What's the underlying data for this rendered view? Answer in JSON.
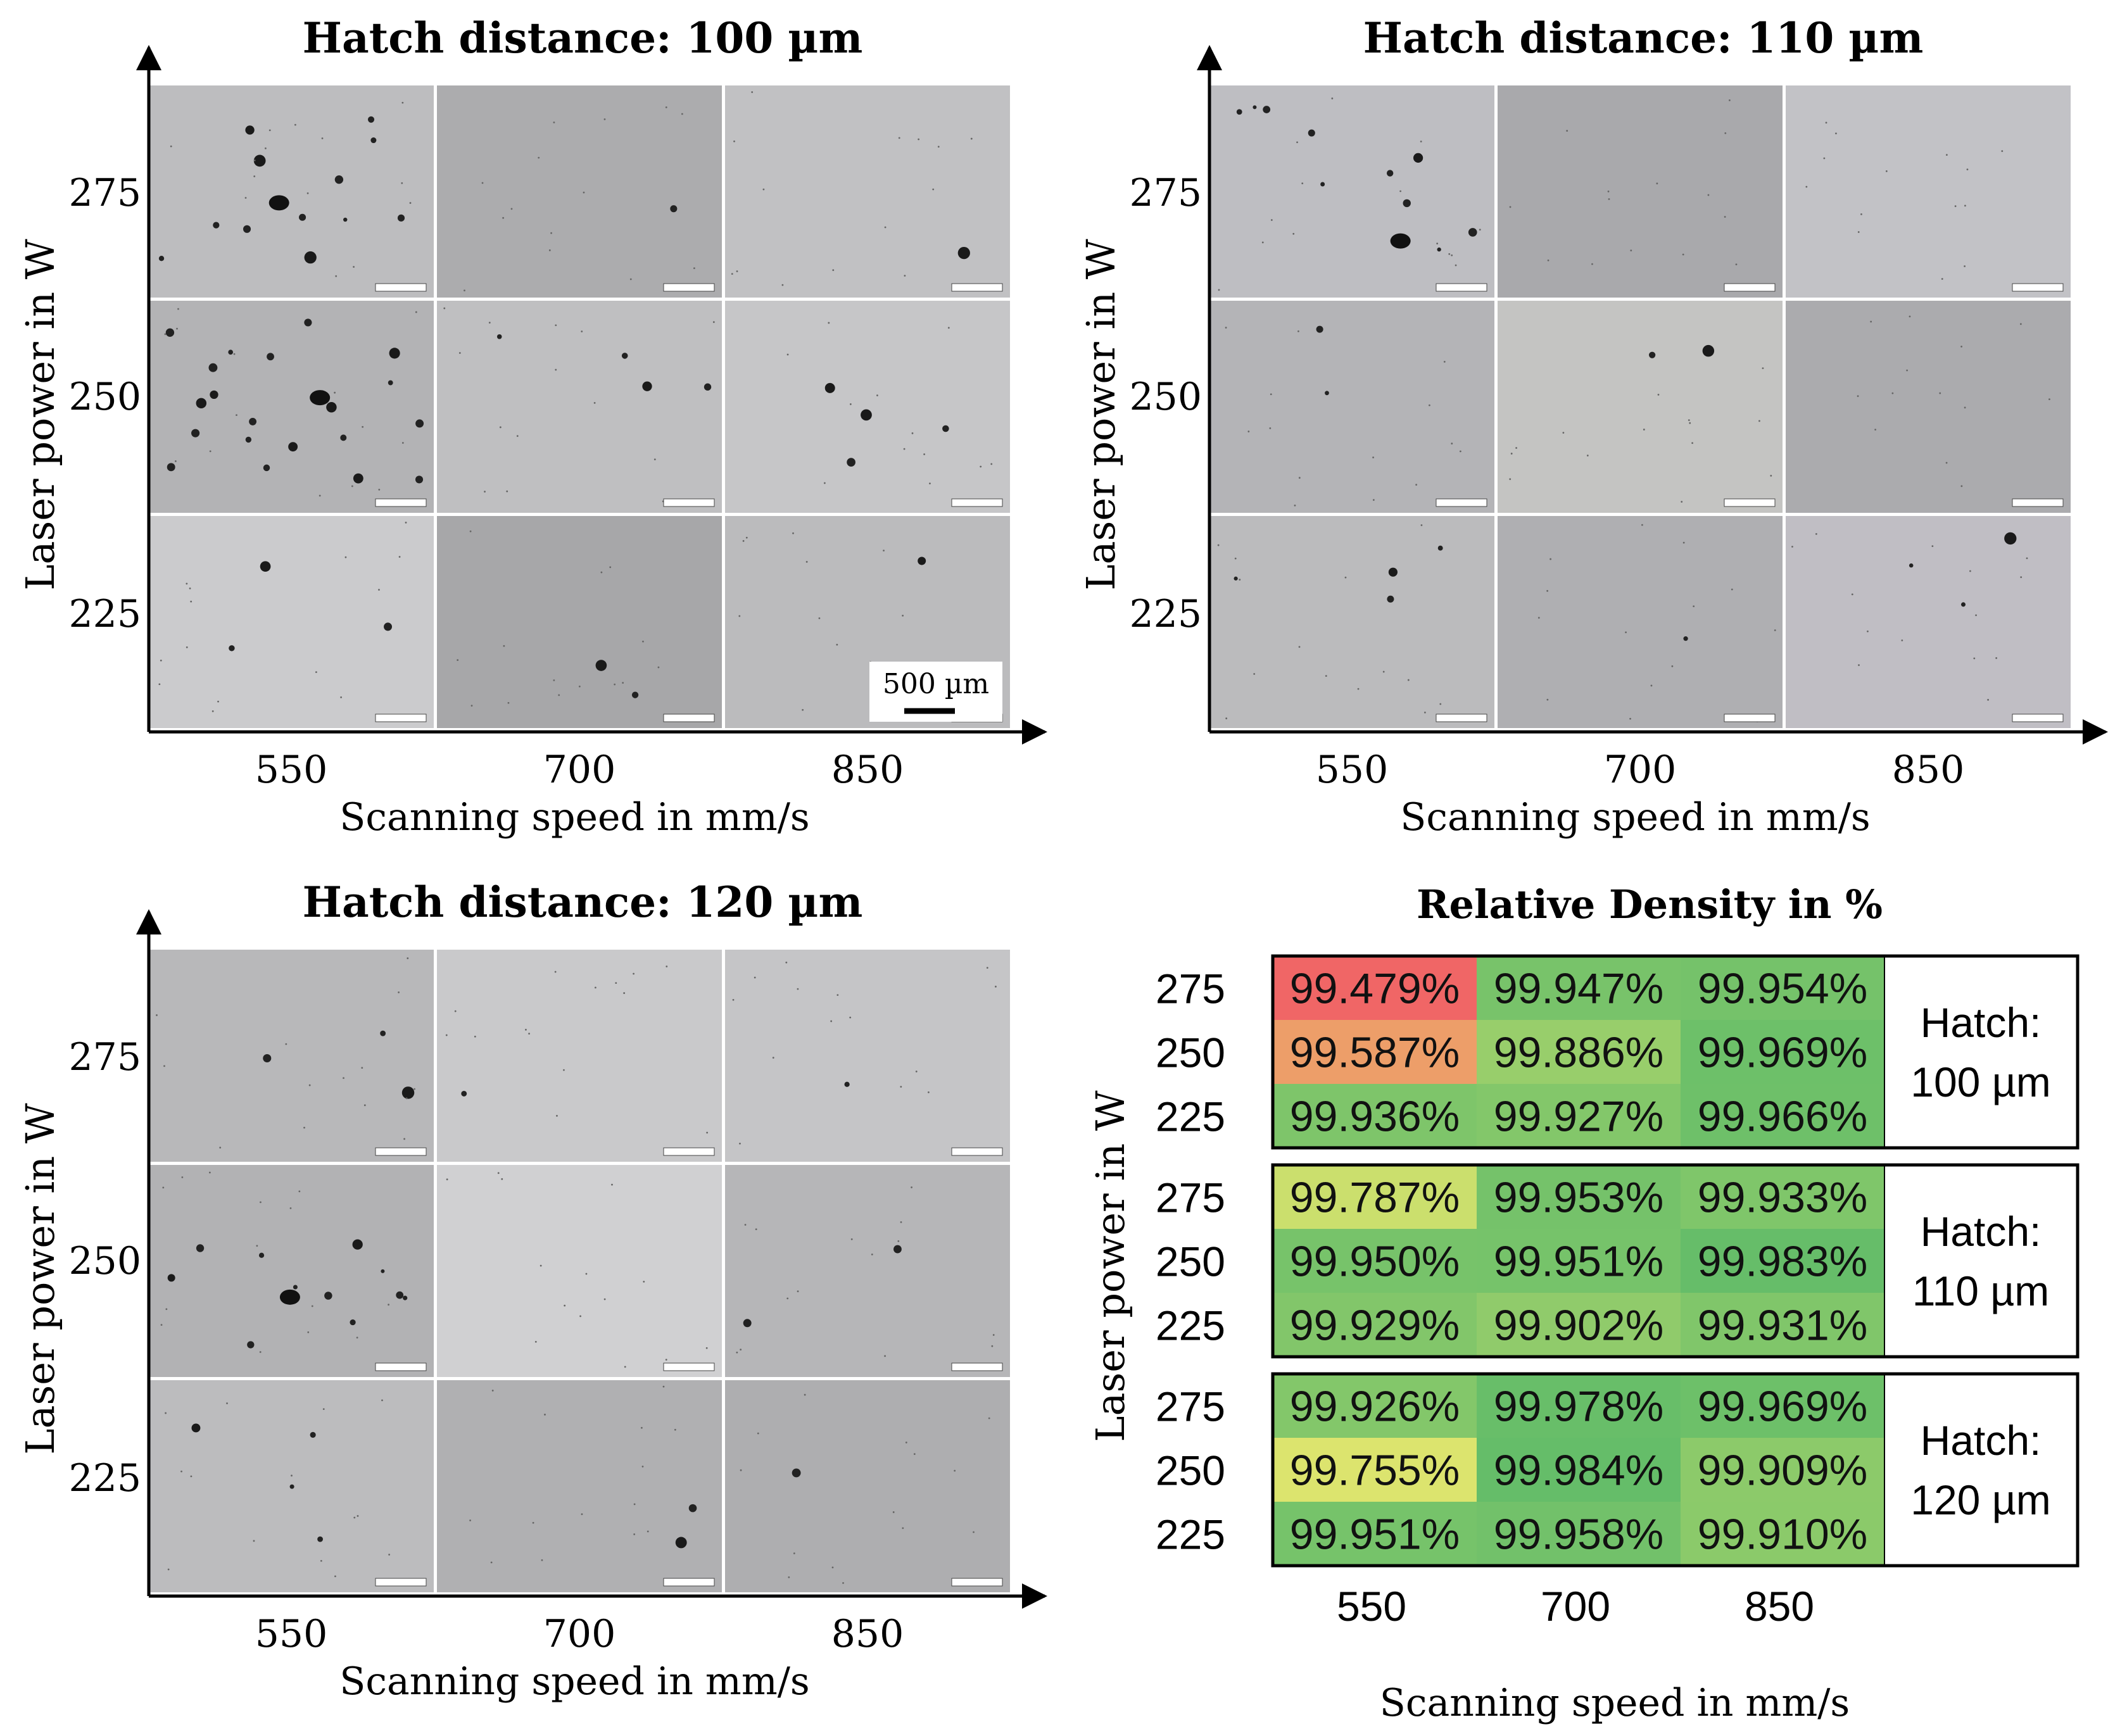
{
  "panels": [
    {
      "title": "Hatch distance: 100 µm",
      "ylabel": "Laser power in W",
      "xlabel": "Scanning speed in mm/s",
      "x_ticks": [
        "550",
        "700",
        "850"
      ],
      "y_ticks": [
        "275",
        "250",
        "225"
      ],
      "scale_bar": "500 µm",
      "pores": [
        [
          9,
          3,
          1
        ],
        [
          1,
          0,
          0
        ],
        [
          0,
          1,
          0
        ],
        [
          14,
          6,
          1
        ],
        [
          3,
          1,
          0
        ],
        [
          2,
          2,
          0
        ],
        [
          2,
          1,
          0
        ],
        [
          1,
          1,
          0
        ],
        [
          1,
          1,
          0
        ]
      ],
      "tones": [
        [
          "#bdbdbf",
          "#acacae",
          "#c1c1c3"
        ],
        [
          "#b3b3b5",
          "#bfbfc1",
          "#c6c6c8"
        ],
        [
          "#cbcbcd",
          "#a7a7a9",
          "#bbbbbd"
        ]
      ]
    },
    {
      "title": "Hatch distance: 110 µm",
      "ylabel": "Laser power in W",
      "xlabel": "Scanning speed in mm/s",
      "x_ticks": [
        "550",
        "700",
        "850"
      ],
      "y_ticks": [
        "275",
        "250",
        "225"
      ],
      "scale_bar": "",
      "pores": [
        [
          9,
          1,
          1
        ],
        [
          0,
          0,
          0
        ],
        [
          0,
          0,
          0
        ],
        [
          2,
          0,
          0
        ],
        [
          1,
          1,
          0
        ],
        [
          0,
          0,
          0
        ],
        [
          3,
          1,
          0
        ],
        [
          1,
          0,
          0
        ],
        [
          2,
          1,
          0
        ]
      ],
      "tones": [
        [
          "#bebec2",
          "#a9a9ac",
          "#c2c2c6"
        ],
        [
          "#b4b4b7",
          "#c4c4c2",
          "#ababae"
        ],
        [
          "#bbbbbd",
          "#afafb2",
          "#c0bec4"
        ]
      ]
    },
    {
      "title": "Hatch distance: 120 µm",
      "ylabel": "Laser power in W",
      "xlabel": "Scanning speed in mm/s",
      "x_ticks": [
        "550",
        "700",
        "850"
      ],
      "y_ticks": [
        "275",
        "250",
        "225"
      ],
      "scale_bar": "",
      "pores": [
        [
          2,
          1,
          0
        ],
        [
          1,
          0,
          0
        ],
        [
          1,
          0,
          0
        ],
        [
          9,
          2,
          1
        ],
        [
          0,
          0,
          0
        ],
        [
          2,
          0,
          0
        ],
        [
          3,
          1,
          0
        ],
        [
          1,
          1,
          0
        ],
        [
          1,
          0,
          0
        ]
      ],
      "tones": [
        [
          "#b8b8ba",
          "#c9c9cb",
          "#c5c5c7"
        ],
        [
          "#b2b2b4",
          "#d0d0d2",
          "#b6b6b8"
        ],
        [
          "#bcbcbe",
          "#b0b0b2",
          "#aeaeb0"
        ]
      ]
    }
  ],
  "chart_data": {
    "type": "heatmap",
    "title": "Relative Density in %",
    "xlabel": "Scanning speed in mm/s",
    "ylabel": "Laser power in W",
    "x_ticks": [
      "550",
      "700",
      "850"
    ],
    "y_ticks": [
      "275",
      "250",
      "225"
    ],
    "color_scale": {
      "min": 99.479,
      "max": 99.984,
      "low": "#f06666",
      "mid": "#e8e86e",
      "high": "#65bd69"
    },
    "groups": [
      {
        "label": "Hatch:",
        "value": "100 µm",
        "values": [
          [
            99.479,
            99.947,
            99.954
          ],
          [
            99.587,
            99.886,
            99.969
          ],
          [
            99.936,
            99.927,
            99.966
          ]
        ],
        "labels": [
          [
            "99.479%",
            "99.947%",
            "99.954%"
          ],
          [
            "99.587%",
            "99.886%",
            "99.969%"
          ],
          [
            "99.936%",
            "99.927%",
            "99.966%"
          ]
        ]
      },
      {
        "label": "Hatch:",
        "value": "110 µm",
        "values": [
          [
            99.787,
            99.953,
            99.933
          ],
          [
            99.95,
            99.951,
            99.983
          ],
          [
            99.929,
            99.902,
            99.931
          ]
        ],
        "labels": [
          [
            "99.787%",
            "99.953%",
            "99.933%"
          ],
          [
            "99.950%",
            "99.951%",
            "99.983%"
          ],
          [
            "99.929%",
            "99.902%",
            "99.931%"
          ]
        ]
      },
      {
        "label": "Hatch:",
        "value": "120 µm",
        "values": [
          [
            99.926,
            99.978,
            99.969
          ],
          [
            99.755,
            99.984,
            99.909
          ],
          [
            99.951,
            99.958,
            99.91
          ]
        ],
        "labels": [
          [
            "99.926%",
            "99.978%",
            "99.969%"
          ],
          [
            "99.755%",
            "99.984%",
            "99.909%"
          ],
          [
            "99.951%",
            "99.958%",
            "99.910%"
          ]
        ]
      }
    ]
  }
}
